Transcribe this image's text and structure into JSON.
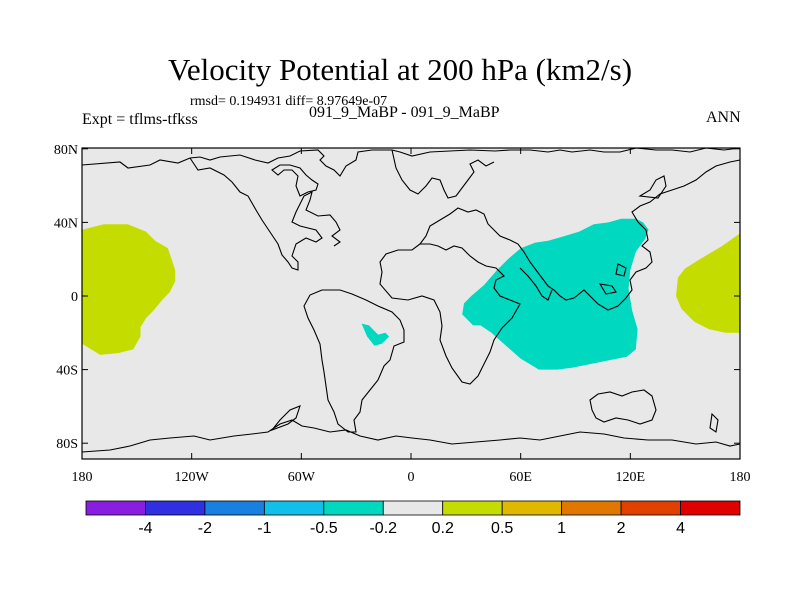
{
  "title": "Velocity Potential at 200 hPa (km2/s)",
  "stats": "rmsd= 0.194931 diff= 8.97649e-07",
  "subtitle": "091_9_MaBP - 091_9_MaBP",
  "left_label": "Expt = tflms-tfkss",
  "right_label": "ANN",
  "colors": {
    "background_field": "#e8e8e8",
    "negative_anomaly": "#00d8c0",
    "positive_anomaly": "#c4dc00",
    "coast": "#000000"
  },
  "chart_data": {
    "type": "heatmap",
    "projection": "cylindrical-equidistant",
    "xlabel": "",
    "ylabel": "",
    "x_range": [
      180,
      -180
    ],
    "y_range": [
      -90,
      90
    ],
    "x_ticks": [
      {
        "value": -180,
        "label": "180"
      },
      {
        "value": -120,
        "label": "120W"
      },
      {
        "value": -60,
        "label": "60W"
      },
      {
        "value": 0,
        "label": "0"
      },
      {
        "value": 60,
        "label": "60E"
      },
      {
        "value": 120,
        "label": "120E"
      },
      {
        "value": 180,
        "label": "180"
      }
    ],
    "y_ticks": [
      {
        "value": 80,
        "label": "80N"
      },
      {
        "value": 40,
        "label": "40N"
      },
      {
        "value": 0,
        "label": "0"
      },
      {
        "value": -40,
        "label": "40S"
      },
      {
        "value": -80,
        "label": "80S"
      }
    ],
    "regions": [
      {
        "name": "pacific-east-positive",
        "level": "0.2 to 0.5",
        "polygon": [
          [
            -180,
            36
          ],
          [
            -168,
            39
          ],
          [
            -155,
            39
          ],
          [
            -145,
            35
          ],
          [
            -140,
            30
          ],
          [
            -133,
            26
          ],
          [
            -131,
            20
          ],
          [
            -129,
            14
          ],
          [
            -129,
            8
          ],
          [
            -132,
            2
          ],
          [
            -136,
            -2
          ],
          [
            -141,
            -8
          ],
          [
            -145,
            -12
          ],
          [
            -148,
            -17
          ],
          [
            -148,
            -22
          ],
          [
            -152,
            -29
          ],
          [
            -160,
            -31
          ],
          [
            -170,
            -32
          ],
          [
            -180,
            -26
          ]
        ]
      },
      {
        "name": "atlantic-negative",
        "level": "-0.5 to -0.2",
        "polygon": [
          [
            -27,
            -15
          ],
          [
            -23,
            -16
          ],
          [
            -18,
            -21
          ],
          [
            -14,
            -20
          ],
          [
            -12,
            -22
          ],
          [
            -16,
            -26
          ],
          [
            -20,
            -27
          ],
          [
            -24,
            -22
          ]
        ]
      },
      {
        "name": "indian-ocean-negative",
        "level": "-0.5 to -0.2",
        "polygon": [
          [
            28,
            -10
          ],
          [
            29,
            -4
          ],
          [
            33,
            0
          ],
          [
            40,
            6
          ],
          [
            47,
            14
          ],
          [
            53,
            20
          ],
          [
            60,
            26
          ],
          [
            68,
            29
          ],
          [
            75,
            30
          ],
          [
            82,
            32
          ],
          [
            92,
            35
          ],
          [
            100,
            39
          ],
          [
            108,
            40
          ],
          [
            115,
            42
          ],
          [
            123,
            42
          ],
          [
            127,
            40
          ],
          [
            130,
            36
          ],
          [
            128,
            31
          ],
          [
            123,
            24
          ],
          [
            120,
            14
          ],
          [
            119,
            4
          ],
          [
            121,
            -8
          ],
          [
            124,
            -18
          ],
          [
            123,
            -29
          ],
          [
            118,
            -33
          ],
          [
            108,
            -35
          ],
          [
            98,
            -37
          ],
          [
            88,
            -39
          ],
          [
            80,
            -40
          ],
          [
            70,
            -40
          ],
          [
            60,
            -34
          ],
          [
            52,
            -27
          ],
          [
            44,
            -20
          ],
          [
            38,
            -16
          ],
          [
            34,
            -16
          ]
        ]
      },
      {
        "name": "pacific-west-positive",
        "level": "0.2 to 0.5",
        "polygon": [
          [
            180,
            34
          ],
          [
            170,
            27
          ],
          [
            158,
            20
          ],
          [
            150,
            15
          ],
          [
            146,
            10
          ],
          [
            145,
            0
          ],
          [
            148,
            -7
          ],
          [
            155,
            -14
          ],
          [
            163,
            -18
          ],
          [
            172,
            -20
          ],
          [
            180,
            -20
          ]
        ]
      }
    ],
    "colorbar": {
      "labels": [
        "-4",
        "-2",
        "-1",
        "-0.5",
        "-0.2",
        "0.2",
        "0.5",
        "1",
        "2",
        "4"
      ],
      "colors": [
        "#8a1ee0",
        "#3030e0",
        "#1a80e0",
        "#10c0e8",
        "#00d8c0",
        "#e8e8e8",
        "#c4dc00",
        "#e0b800",
        "#e07800",
        "#e04000",
        "#e00000"
      ]
    }
  }
}
